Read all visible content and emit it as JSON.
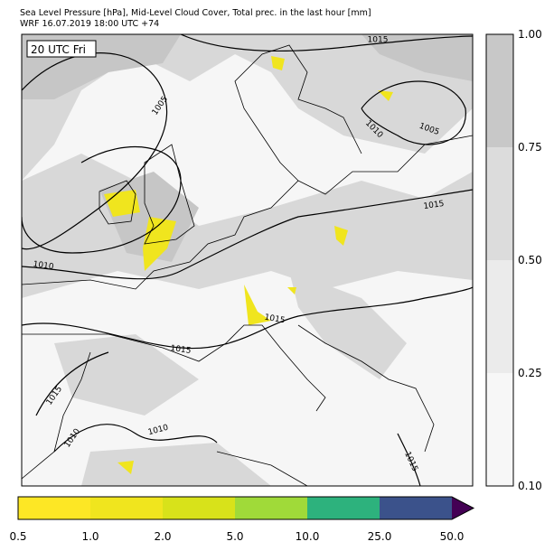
{
  "header": {
    "title_line1": "Sea Level Pressure [hPa], Mid-Level Cloud Cover, Total prec. in the last hour [mm]",
    "title_line2": "WRF 16.07.2019 18:00 UTC +74"
  },
  "map": {
    "time_label": "20 UTC Fri",
    "contour_labels": [
      "1015",
      "1005",
      "1010",
      "1005",
      "1015",
      "1010",
      "1015",
      "1015",
      "1015",
      "1010",
      "1010",
      "1015"
    ]
  },
  "cloud_colorbar": {
    "ticks": [
      "1.00",
      "0.75",
      "0.50",
      "0.25",
      "0.10"
    ]
  },
  "precip_colorbar": {
    "ticks": [
      "0.5",
      "1.0",
      "2.0",
      "5.0",
      "10.0",
      "25.0",
      "50.0"
    ]
  }
}
